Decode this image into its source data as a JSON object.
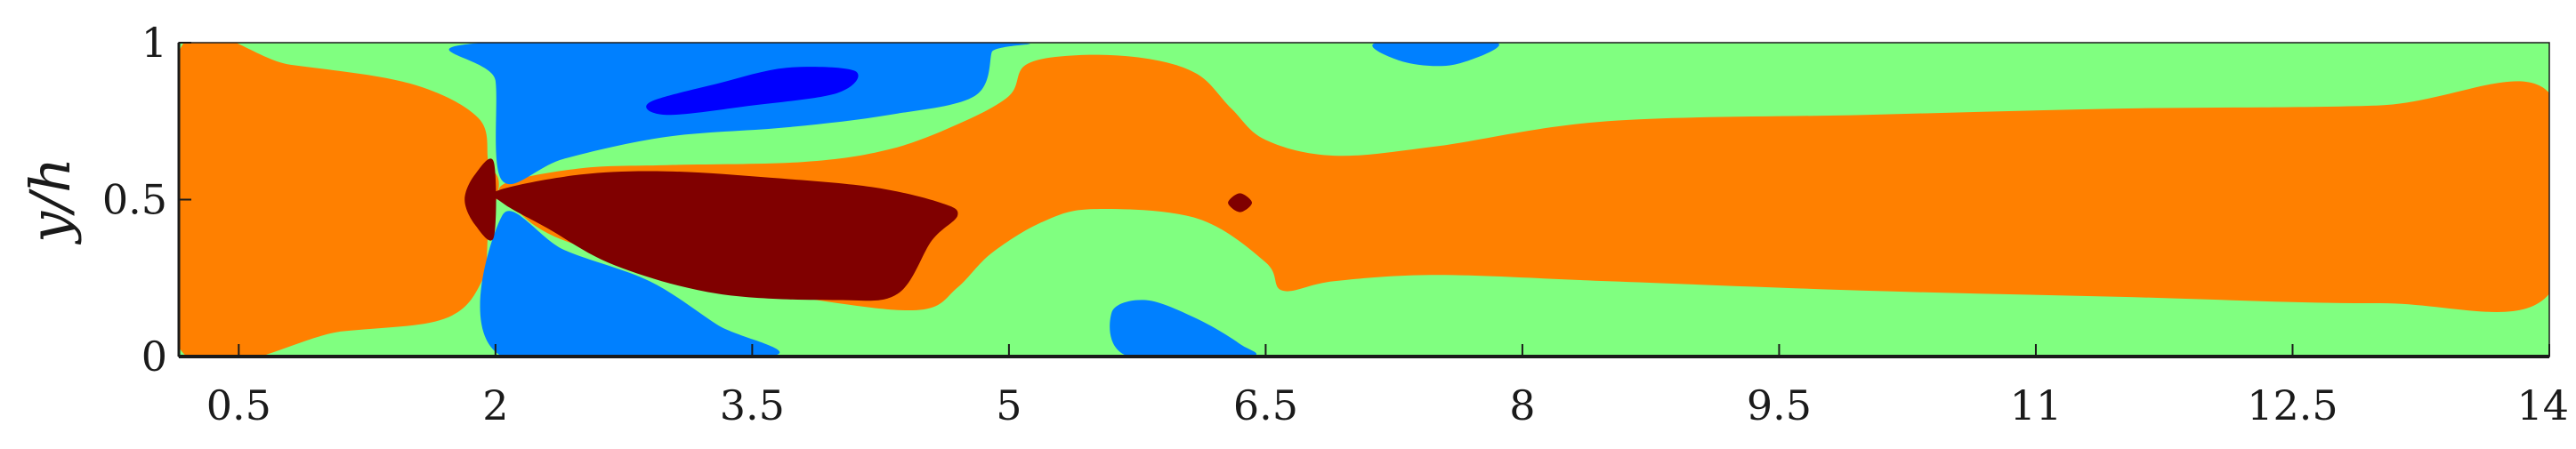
{
  "chart_data": {
    "type": "heatmap",
    "title": "",
    "xlabel": "",
    "ylabel": "y/h",
    "xlim": [
      0.15,
      14.0
    ],
    "ylim": [
      0,
      1
    ],
    "x_ticks": [
      0.5,
      2,
      3.5,
      5,
      6.5,
      8,
      9.5,
      11,
      12.5,
      14
    ],
    "x_tick_labels": [
      "0.5",
      "2",
      "3.5",
      "5",
      "6.5",
      "8",
      "9.5",
      "11",
      "12.5",
      "14"
    ],
    "y_ticks": [
      0,
      0.5,
      1
    ],
    "y_tick_labels": [
      "0",
      "0.5",
      "1"
    ],
    "colorbar": false,
    "levels": [
      {
        "name": "dark-red",
        "color": "#800000"
      },
      {
        "name": "orange",
        "color": "#ff8000"
      },
      {
        "name": "green",
        "color": "#80ff80"
      },
      {
        "name": "light-blue",
        "color": "#0080ff"
      },
      {
        "name": "blue",
        "color": "#0000ff"
      }
    ],
    "regions": [
      {
        "level": "orange",
        "points": [
          [
            0.15,
            0.97
          ],
          [
            0.8,
            0.93
          ],
          [
            1.5,
            0.87
          ],
          [
            1.9,
            0.76
          ],
          [
            1.96,
            0.62
          ],
          [
            2.02,
            0.55
          ],
          [
            1.96,
            0.4
          ],
          [
            1.92,
            0.24
          ],
          [
            1.7,
            0.12
          ],
          [
            1.1,
            0.08
          ],
          [
            0.15,
            0.03
          ]
        ]
      },
      {
        "level": "orange",
        "points": [
          [
            2.05,
            0.55
          ],
          [
            2.5,
            0.6
          ],
          [
            3.0,
            0.61
          ],
          [
            3.8,
            0.62
          ],
          [
            4.3,
            0.66
          ],
          [
            4.7,
            0.74
          ],
          [
            5.0,
            0.83
          ],
          [
            5.1,
            0.93
          ],
          [
            5.4,
            0.96
          ],
          [
            5.8,
            0.95
          ],
          [
            6.1,
            0.9
          ],
          [
            6.3,
            0.79
          ],
          [
            6.5,
            0.69
          ],
          [
            6.9,
            0.64
          ],
          [
            7.5,
            0.67
          ],
          [
            8.5,
            0.75
          ],
          [
            10,
            0.77
          ],
          [
            11.5,
            0.79
          ],
          [
            13,
            0.8
          ],
          [
            14,
            0.84
          ],
          [
            14,
            0.2
          ],
          [
            13,
            0.17
          ],
          [
            11.5,
            0.19
          ],
          [
            10,
            0.21
          ],
          [
            8.5,
            0.24
          ],
          [
            7.5,
            0.26
          ],
          [
            6.9,
            0.24
          ],
          [
            6.6,
            0.21
          ],
          [
            6.5,
            0.3
          ],
          [
            6.1,
            0.44
          ],
          [
            5.5,
            0.47
          ],
          [
            5.2,
            0.43
          ],
          [
            4.9,
            0.33
          ],
          [
            4.7,
            0.22
          ],
          [
            4.5,
            0.15
          ],
          [
            4.0,
            0.17
          ],
          [
            3.2,
            0.25
          ],
          [
            2.4,
            0.37
          ],
          [
            2.1,
            0.48
          ]
        ]
      },
      {
        "level": "light-blue",
        "points": [
          [
            1.93,
            1.0
          ],
          [
            2.0,
            0.88
          ],
          [
            2.04,
            0.56
          ],
          [
            2.4,
            0.63
          ],
          [
            3.0,
            0.7
          ],
          [
            3.7,
            0.73
          ],
          [
            4.3,
            0.77
          ],
          [
            4.8,
            0.83
          ],
          [
            4.9,
            0.97
          ],
          [
            4.9,
            1.0
          ]
        ]
      },
      {
        "level": "light-blue",
        "points": [
          [
            2.04,
            0.0
          ],
          [
            2.04,
            0.45
          ],
          [
            2.4,
            0.34
          ],
          [
            2.9,
            0.24
          ],
          [
            3.3,
            0.1
          ],
          [
            3.6,
            0.0
          ]
        ]
      },
      {
        "level": "light-blue",
        "points": [
          [
            5.7,
            0.0
          ],
          [
            5.6,
            0.14
          ],
          [
            5.8,
            0.18
          ],
          [
            6.1,
            0.12
          ],
          [
            6.35,
            0.04
          ],
          [
            6.4,
            0.0
          ]
        ]
      },
      {
        "level": "light-blue",
        "points": [
          [
            7.15,
            1.0
          ],
          [
            7.3,
            0.94
          ],
          [
            7.6,
            0.93
          ],
          [
            7.85,
            1.0
          ]
        ]
      },
      {
        "level": "blue",
        "points": [
          [
            2.9,
            0.81
          ],
          [
            3.3,
            0.87
          ],
          [
            3.7,
            0.92
          ],
          [
            4.1,
            0.91
          ],
          [
            4.0,
            0.84
          ],
          [
            3.5,
            0.8
          ],
          [
            3.0,
            0.77
          ]
        ]
      },
      {
        "level": "dark-red",
        "points": [
          [
            2.02,
            0.53
          ],
          [
            2.5,
            0.58
          ],
          [
            3.0,
            0.59
          ],
          [
            3.6,
            0.57
          ],
          [
            4.2,
            0.54
          ],
          [
            4.6,
            0.49
          ],
          [
            4.7,
            0.45
          ],
          [
            4.55,
            0.37
          ],
          [
            4.35,
            0.2
          ],
          [
            4.0,
            0.18
          ],
          [
            3.3,
            0.2
          ],
          [
            2.7,
            0.29
          ],
          [
            2.3,
            0.41
          ],
          [
            2.04,
            0.49
          ]
        ]
      },
      {
        "level": "dark-red",
        "points": [
          [
            1.99,
            0.38
          ],
          [
            1.88,
            0.42
          ],
          [
            1.82,
            0.5
          ],
          [
            1.88,
            0.58
          ],
          [
            1.99,
            0.62
          ]
        ]
      },
      {
        "level": "dark-red",
        "points": [
          [
            6.28,
            0.49
          ],
          [
            6.35,
            0.52
          ],
          [
            6.42,
            0.49
          ],
          [
            6.35,
            0.46
          ]
        ]
      }
    ]
  }
}
